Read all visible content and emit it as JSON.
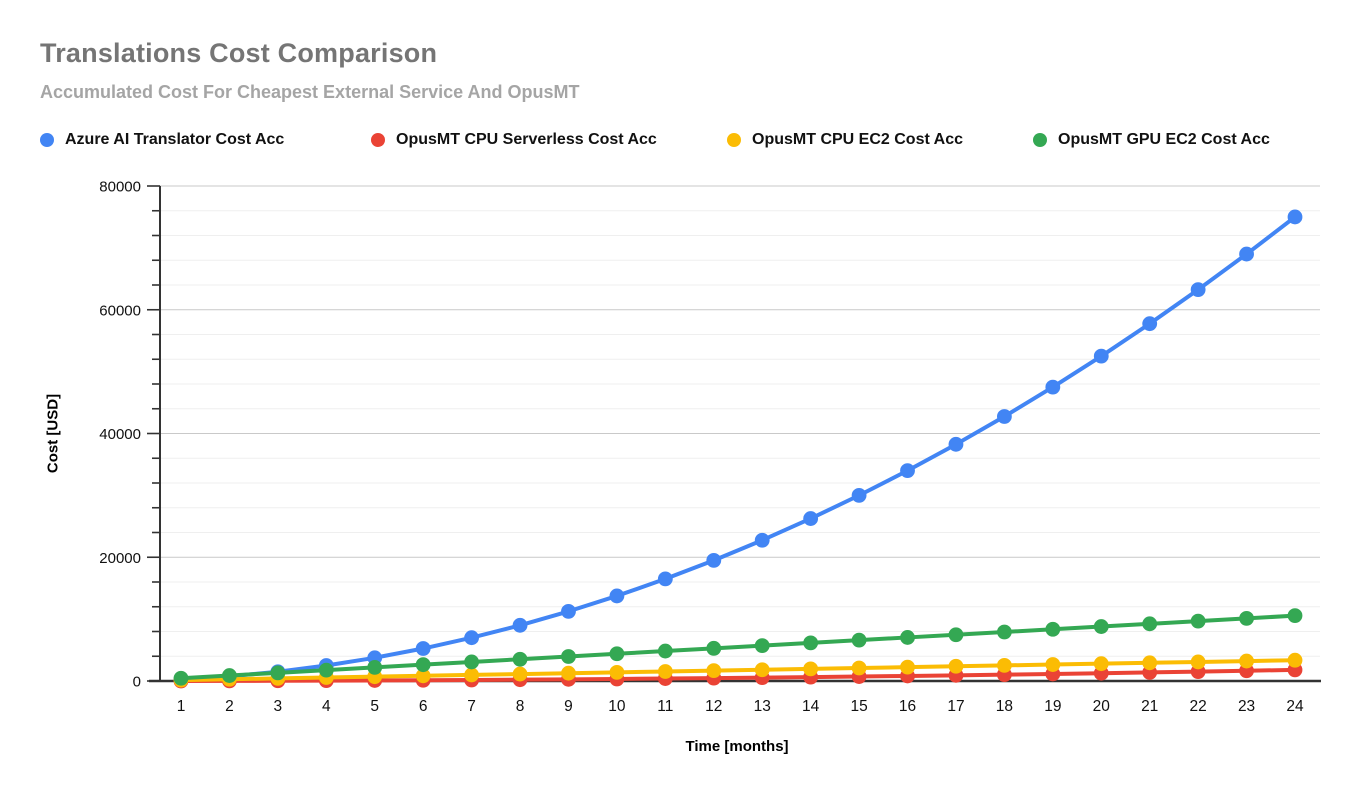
{
  "header": {
    "title": "Translations Cost Comparison",
    "subtitle": "Accumulated Cost For Cheapest External Service And OpusMT"
  },
  "axes": {
    "x_title": "Time [months]",
    "y_title": "Cost [USD]"
  },
  "chart_data": {
    "type": "line",
    "title": "Translations Cost Comparison",
    "subtitle": "Accumulated Cost For Cheapest External Service And OpusMT",
    "xlabel": "Time [months]",
    "ylabel": "Cost [USD]",
    "x": [
      1,
      2,
      3,
      4,
      5,
      6,
      7,
      8,
      9,
      10,
      11,
      12,
      13,
      14,
      15,
      16,
      17,
      18,
      19,
      20,
      21,
      22,
      23,
      24
    ],
    "ylim": [
      0,
      80000
    ],
    "y_major_step": 20000,
    "y_minor_step": 4000,
    "y_tick_labels": [
      "0",
      "20000",
      "40000",
      "60000",
      "80000"
    ],
    "grid": true,
    "legend_position": "top",
    "marker": "circle",
    "series": [
      {
        "name": "Azure AI Translator Cost Acc",
        "color": "#4285F4",
        "values": [
          250,
          750,
          1500,
          2500,
          3750,
          5250,
          7000,
          9000,
          11250,
          13750,
          16500,
          19500,
          22750,
          26250,
          30000,
          34000,
          38250,
          42750,
          47500,
          52500,
          57750,
          63250,
          69000,
          75000
        ]
      },
      {
        "name": "OpusMT CPU Serverless Cost Acc",
        "color": "#EA4335",
        "values": [
          6,
          18,
          36,
          60,
          90,
          126,
          168,
          216,
          270,
          330,
          396,
          468,
          546,
          630,
          720,
          816,
          918,
          1026,
          1140,
          1260,
          1386,
          1518,
          1656,
          1800
        ]
      },
      {
        "name": "OpusMT CPU EC2 Cost Acc",
        "color": "#FBBC04",
        "values": [
          140,
          280,
          420,
          560,
          700,
          840,
          980,
          1120,
          1260,
          1400,
          1540,
          1680,
          1820,
          1960,
          2100,
          2240,
          2380,
          2520,
          2660,
          2800,
          2940,
          3080,
          3220,
          3360
        ]
      },
      {
        "name": "OpusMT GPU EC2 Cost Acc",
        "color": "#34A853",
        "values": [
          440,
          880,
          1320,
          1760,
          2200,
          2640,
          3080,
          3520,
          3960,
          4400,
          4840,
          5280,
          5720,
          6160,
          6600,
          7040,
          7480,
          7920,
          8360,
          8800,
          9240,
          9680,
          10120,
          10560
        ]
      }
    ]
  }
}
